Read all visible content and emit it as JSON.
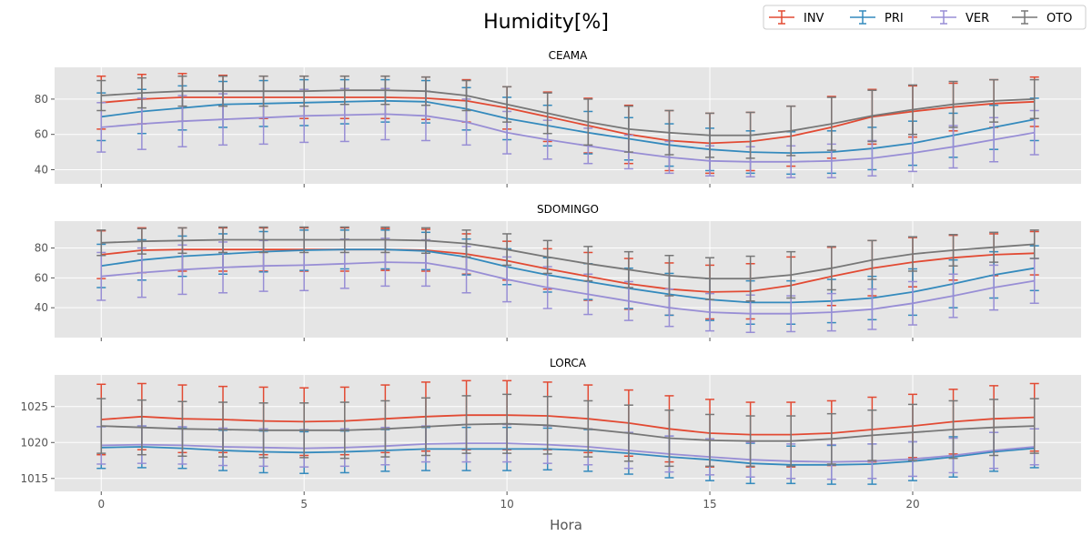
{
  "title": "Humidity[%]",
  "xlabel": "Hora",
  "legend": [
    {
      "name": "INV",
      "color": "#E24A33"
    },
    {
      "name": "PRI",
      "color": "#348ABD"
    },
    {
      "name": "VER",
      "color": "#988ED5"
    },
    {
      "name": "OTO",
      "color": "#777777"
    }
  ],
  "chart_data": [
    {
      "type": "line",
      "title": "CEAMA",
      "x": [
        0,
        1,
        2,
        3,
        4,
        5,
        6,
        7,
        8,
        9,
        10,
        11,
        12,
        13,
        14,
        15,
        16,
        17,
        18,
        19,
        20,
        21,
        22,
        23
      ],
      "xlim": [
        -1.15,
        24.15
      ],
      "ylim": [
        32,
        98
      ],
      "yticks": [
        40,
        60,
        80
      ],
      "xticks": [
        0,
        5,
        10,
        15,
        20
      ],
      "grid": true,
      "error_bars": true,
      "series": [
        {
          "name": "INV",
          "values": [
            78,
            80,
            81,
            81,
            81,
            81,
            81,
            81,
            80.5,
            79,
            75,
            70,
            65,
            60,
            56.5,
            55,
            56,
            59,
            64,
            70,
            73,
            75.5,
            77.5,
            78.5
          ],
          "errors": [
            15,
            14,
            13.5,
            12.5,
            12,
            12,
            12,
            12,
            12,
            12,
            12,
            14,
            15.5,
            16.5,
            17,
            17,
            16.5,
            17,
            17.5,
            15.5,
            14.5,
            13.5,
            13.5,
            14
          ]
        },
        {
          "name": "PRI",
          "values": [
            70,
            73,
            75,
            77,
            77.5,
            78,
            78.5,
            79,
            78.5,
            74.5,
            69,
            65,
            61,
            57.5,
            54,
            51.5,
            50,
            49.5,
            50,
            52,
            55,
            59.5,
            64,
            68.5
          ],
          "errors": [
            13.5,
            12.5,
            12.5,
            13,
            13,
            13,
            12.5,
            12,
            12,
            12,
            12,
            11.5,
            12,
            12,
            12,
            12,
            12,
            12,
            12,
            12,
            12.5,
            12.5,
            12.5,
            12
          ]
        },
        {
          "name": "VER",
          "values": [
            64,
            66,
            67.5,
            68.5,
            69.5,
            70.5,
            71,
            71.5,
            70.5,
            67,
            61,
            57,
            53.5,
            50,
            47,
            45,
            44.5,
            44.5,
            45,
            46.5,
            49.5,
            53,
            57,
            61
          ],
          "errors": [
            14,
            14.5,
            14.5,
            14.5,
            15,
            15,
            15,
            14.5,
            14,
            13,
            12,
            11,
            10,
            9.5,
            9,
            8.5,
            8.5,
            9,
            9.5,
            10,
            10.5,
            12,
            12.5,
            12.5
          ]
        },
        {
          "name": "OTO",
          "values": [
            82,
            83.5,
            84.5,
            84.5,
            84.5,
            84.5,
            85,
            85,
            84.5,
            82,
            77,
            72,
            67,
            63,
            61,
            59.5,
            59.5,
            62,
            66,
            70.5,
            74,
            77,
            79,
            80
          ],
          "errors": [
            8.5,
            8.5,
            8.5,
            8.5,
            8.5,
            8.5,
            8,
            8,
            8,
            8.5,
            10,
            11.5,
            13,
            13,
            12.5,
            12.5,
            13,
            14,
            15,
            14.5,
            14,
            13,
            12,
            11
          ]
        }
      ]
    },
    {
      "type": "line",
      "title": "SDOMINGO",
      "x": [
        0,
        1,
        2,
        3,
        4,
        5,
        6,
        7,
        8,
        9,
        10,
        11,
        12,
        13,
        14,
        15,
        16,
        17,
        18,
        19,
        20,
        21,
        22,
        23
      ],
      "xlim": [
        -1.15,
        24.15
      ],
      "ylim": [
        20,
        98
      ],
      "yticks": [
        40,
        60,
        80
      ],
      "xticks": [
        0,
        5,
        10,
        15,
        20
      ],
      "grid": true,
      "error_bars": true,
      "series": [
        {
          "name": "INV",
          "values": [
            75.5,
            78.5,
            79,
            79,
            79,
            79,
            79,
            79,
            78.5,
            76,
            71.5,
            66,
            61,
            56,
            52.5,
            50.5,
            51,
            55,
            61,
            66.5,
            70.5,
            73.5,
            75.5,
            76.5
          ],
          "errors": [
            16,
            15,
            14.5,
            14.5,
            14.5,
            14.5,
            14.5,
            14,
            14,
            13.5,
            13,
            13.5,
            16,
            17,
            17.5,
            18,
            18.5,
            19,
            19.5,
            18.5,
            16.5,
            15,
            14,
            14.5
          ]
        },
        {
          "name": "PRI",
          "values": [
            68,
            72,
            74.5,
            76,
            77.5,
            78.5,
            79,
            79,
            78,
            74,
            67.5,
            62,
            57.5,
            53,
            49,
            45.5,
            43.5,
            43.5,
            44.5,
            46.5,
            50.5,
            56,
            62,
            66.5
          ],
          "errors": [
            14.5,
            13.5,
            13.5,
            13.5,
            13.5,
            13.5,
            13,
            13,
            12.5,
            12,
            12,
            11.5,
            12,
            13.5,
            14,
            14,
            14.5,
            14.5,
            14.5,
            14.5,
            15.5,
            16,
            15.5,
            15
          ]
        },
        {
          "name": "VER",
          "values": [
            61,
            63.5,
            65.5,
            67,
            68,
            68.5,
            69.5,
            70.5,
            70,
            65.5,
            59,
            53.5,
            49,
            44.5,
            40,
            37,
            36,
            36,
            37,
            39,
            43,
            48,
            53.5,
            58
          ],
          "errors": [
            16,
            16.5,
            16.5,
            17,
            17,
            17,
            16.5,
            16,
            15.5,
            15.5,
            15,
            14,
            13.5,
            13,
            12.5,
            12.5,
            12.5,
            12,
            12.5,
            13.5,
            14.5,
            14.5,
            15,
            15
          ]
        },
        {
          "name": "OTO",
          "values": [
            83.5,
            84.5,
            85,
            85.5,
            85.5,
            85.5,
            85.5,
            85.5,
            85,
            83,
            79,
            74,
            69.5,
            65.5,
            61.5,
            59.5,
            59.5,
            62,
            66.5,
            72,
            76,
            78.5,
            80.5,
            82.5
          ],
          "errors": [
            8.5,
            8.5,
            8.5,
            8.5,
            8.5,
            8.5,
            8.5,
            8.5,
            8.5,
            9,
            10.5,
            11,
            11.5,
            12,
            13.5,
            14,
            15,
            15.5,
            14.5,
            13,
            11.5,
            10.5,
            10,
            9.5
          ]
        }
      ]
    },
    {
      "type": "line",
      "title": "LORCA",
      "x": [
        0,
        1,
        2,
        3,
        4,
        5,
        6,
        7,
        8,
        9,
        10,
        11,
        12,
        13,
        14,
        15,
        16,
        17,
        18,
        19,
        20,
        21,
        22,
        23
      ],
      "xlim": [
        -1.15,
        24.15
      ],
      "ylim": [
        1013.2,
        1029.4
      ],
      "yticks": [
        1015,
        1020,
        1025
      ],
      "xticks": [
        0,
        5,
        10,
        15,
        20
      ],
      "grid": true,
      "error_bars": true,
      "series": [
        {
          "name": "INV",
          "values": [
            1023.2,
            1023.6,
            1023.3,
            1023.2,
            1023.0,
            1022.9,
            1023.0,
            1023.3,
            1023.6,
            1023.8,
            1023.8,
            1023.7,
            1023.3,
            1022.7,
            1021.9,
            1021.3,
            1021.1,
            1021.1,
            1021.3,
            1021.8,
            1022.3,
            1022.9,
            1023.3,
            1023.5
          ],
          "errors": [
            4.9,
            4.6,
            4.7,
            4.6,
            4.7,
            4.7,
            4.7,
            4.7,
            4.8,
            4.8,
            4.8,
            4.7,
            4.7,
            4.6,
            4.6,
            4.7,
            4.5,
            4.5,
            4.5,
            4.5,
            4.4,
            4.5,
            4.6,
            4.7
          ]
        },
        {
          "name": "PRI",
          "values": [
            1019.3,
            1019.4,
            1019.2,
            1018.9,
            1018.7,
            1018.6,
            1018.7,
            1018.9,
            1019.1,
            1019.1,
            1019.1,
            1019.1,
            1018.9,
            1018.5,
            1018.0,
            1017.6,
            1017.1,
            1016.9,
            1016.9,
            1017.0,
            1017.4,
            1018.0,
            1018.7,
            1019.2
          ],
          "errors": [
            2.9,
            2.9,
            2.8,
            2.8,
            2.9,
            2.9,
            2.9,
            2.9,
            3.0,
            3.0,
            3.0,
            2.9,
            2.9,
            2.9,
            2.9,
            2.9,
            2.8,
            2.6,
            2.7,
            2.8,
            2.7,
            2.8,
            2.7,
            2.7
          ]
        },
        {
          "name": "VER",
          "values": [
            1019.6,
            1019.7,
            1019.6,
            1019.4,
            1019.3,
            1019.2,
            1019.3,
            1019.5,
            1019.8,
            1019.9,
            1019.9,
            1019.7,
            1019.4,
            1018.9,
            1018.4,
            1018.0,
            1017.6,
            1017.4,
            1017.3,
            1017.4,
            1017.7,
            1018.2,
            1018.9,
            1019.4
          ],
          "errors": [
            2.6,
            2.6,
            2.6,
            2.6,
            2.6,
            2.6,
            2.6,
            2.6,
            2.5,
            2.6,
            2.6,
            2.6,
            2.5,
            2.5,
            2.5,
            2.5,
            2.4,
            2.4,
            2.4,
            2.4,
            2.4,
            2.4,
            2.5,
            2.5
          ]
        },
        {
          "name": "OTO",
          "values": [
            1022.3,
            1022.1,
            1021.9,
            1021.8,
            1021.7,
            1021.7,
            1021.7,
            1021.9,
            1022.2,
            1022.5,
            1022.6,
            1022.4,
            1021.9,
            1021.3,
            1020.6,
            1020.3,
            1020.2,
            1020.2,
            1020.5,
            1021.0,
            1021.4,
            1021.8,
            1022.1,
            1022.3
          ],
          "errors": [
            3.8,
            3.8,
            3.8,
            3.8,
            3.8,
            3.8,
            3.9,
            3.9,
            4.0,
            4.0,
            4.1,
            4.0,
            3.9,
            3.9,
            3.9,
            3.6,
            3.5,
            3.5,
            3.5,
            3.5,
            3.9,
            4.0,
            3.9,
            3.8
          ]
        }
      ]
    }
  ]
}
